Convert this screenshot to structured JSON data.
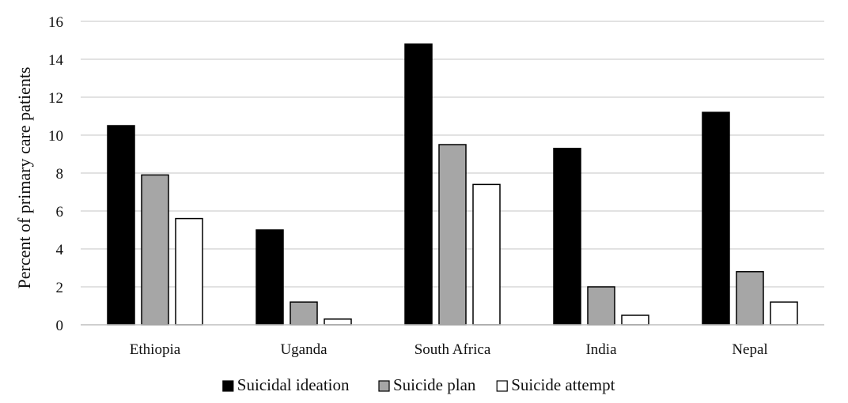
{
  "chart_data": {
    "type": "bar",
    "title": "",
    "xlabel": "",
    "ylabel": "Percent of primary care patients",
    "ylim": [
      0,
      16
    ],
    "yticks": [
      0,
      2,
      4,
      6,
      8,
      10,
      12,
      14,
      16
    ],
    "grid": true,
    "legend_position": "bottom",
    "categories": [
      "Ethiopia",
      "Uganda",
      "South Africa",
      "India",
      "Nepal"
    ],
    "series": [
      {
        "name": "Suicidal ideation",
        "color": "#000000",
        "values": [
          10.5,
          5.0,
          14.8,
          9.3,
          11.2
        ]
      },
      {
        "name": "Suicide plan",
        "color": "#a6a6a6",
        "values": [
          7.9,
          1.2,
          9.5,
          2.0,
          2.8
        ]
      },
      {
        "name": "Suicide attempt",
        "color": "#ffffff",
        "values": [
          5.6,
          0.3,
          7.4,
          0.5,
          1.2
        ]
      }
    ]
  }
}
